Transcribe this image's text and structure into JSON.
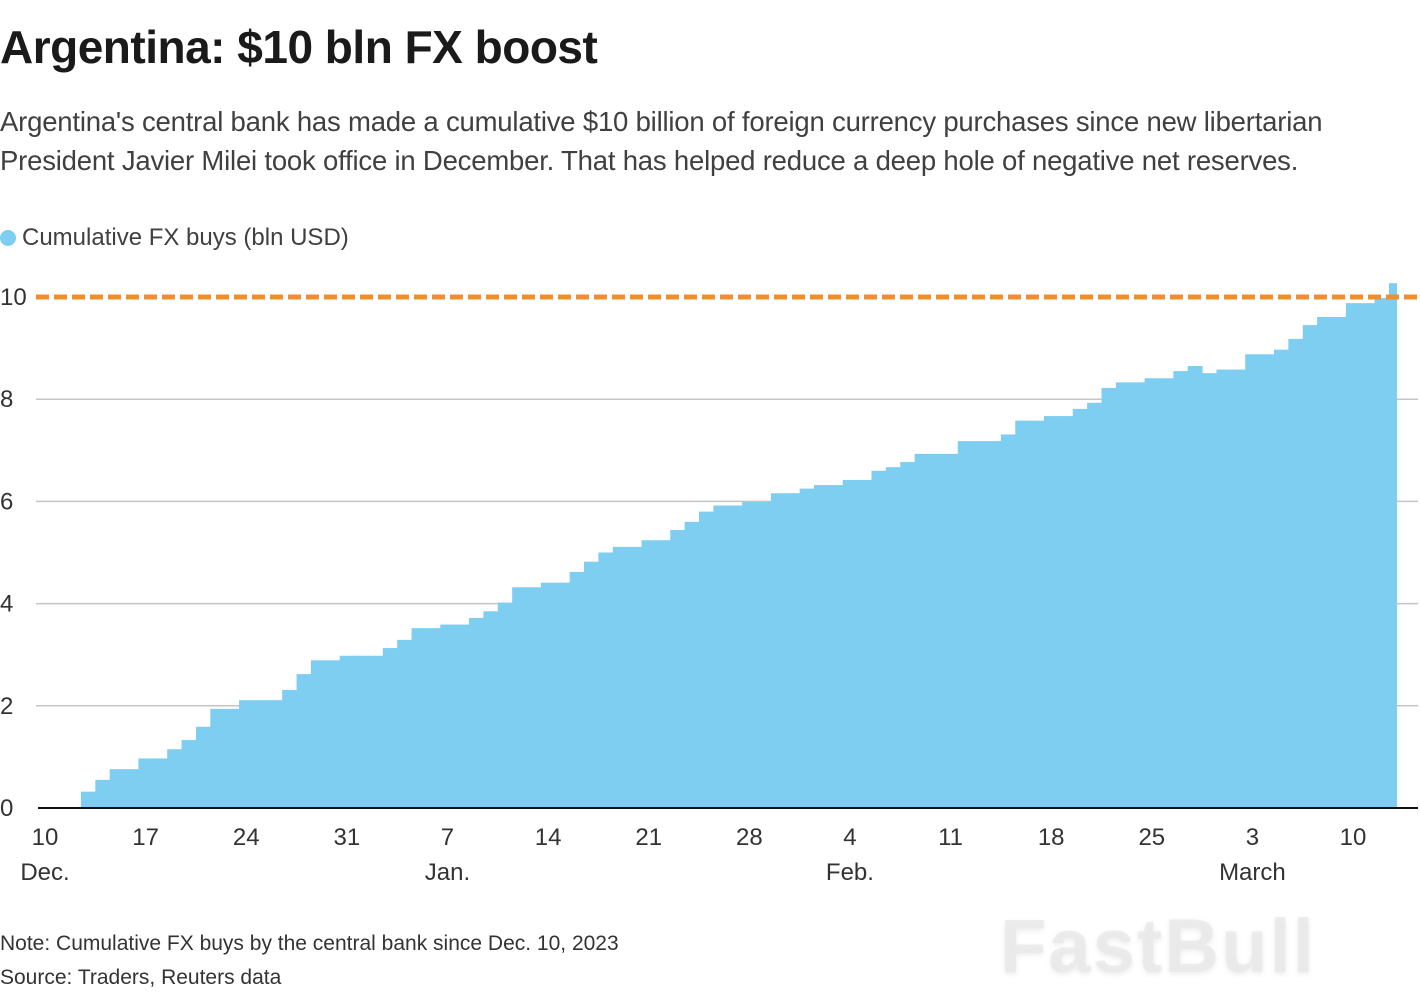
{
  "title": "Argentina: $10 bln FX boost",
  "subtitle": "Argentina's central bank has made a cumulative $10 billion of foreign currency purchases since new libertarian President Javier Milei took office in December. That has helped reduce a deep hole of negative net reserves.",
  "note": "Note: Cumulative FX buys by the central bank since Dec. 10, 2023",
  "source": "Source: Traders, Reuters data",
  "watermark": "FastBull",
  "chart_data": {
    "type": "area",
    "step": true,
    "title": "Argentina: $10 bln FX boost",
    "xlabel": "",
    "ylabel": "",
    "ylim": [
      0,
      10.4
    ],
    "grid": true,
    "legend_position": "top-left",
    "yticks": [
      "0",
      "2",
      "4",
      "6",
      "8",
      "10"
    ],
    "xticks": [
      {
        "date": "2023-12-10",
        "label": "10",
        "month": "Dec."
      },
      {
        "date": "2023-12-17",
        "label": "17",
        "month": ""
      },
      {
        "date": "2023-12-24",
        "label": "24",
        "month": ""
      },
      {
        "date": "2023-12-31",
        "label": "31",
        "month": ""
      },
      {
        "date": "2024-01-07",
        "label": "7",
        "month": "Jan."
      },
      {
        "date": "2024-01-14",
        "label": "14",
        "month": ""
      },
      {
        "date": "2024-01-21",
        "label": "21",
        "month": ""
      },
      {
        "date": "2024-01-28",
        "label": "28",
        "month": ""
      },
      {
        "date": "2024-02-04",
        "label": "4",
        "month": "Feb."
      },
      {
        "date": "2024-02-11",
        "label": "11",
        "month": ""
      },
      {
        "date": "2024-02-18",
        "label": "18",
        "month": ""
      },
      {
        "date": "2024-02-25",
        "label": "25",
        "month": ""
      },
      {
        "date": "2024-03-03",
        "label": "3",
        "month": "March"
      },
      {
        "date": "2024-03-10",
        "label": "10",
        "month": ""
      }
    ],
    "reference_line": {
      "value": 10,
      "color": "#EE8F2B",
      "style": "dashed"
    },
    "series": [
      {
        "name": "Cumulative FX buys (bln USD)",
        "color": "#7ECEF2",
        "dates": [
          "2023-12-10",
          "2023-12-11",
          "2023-12-12",
          "2023-12-13",
          "2023-12-14",
          "2023-12-15",
          "2023-12-16",
          "2023-12-17",
          "2023-12-18",
          "2023-12-19",
          "2023-12-20",
          "2023-12-21",
          "2023-12-22",
          "2023-12-23",
          "2023-12-24",
          "2023-12-25",
          "2023-12-26",
          "2023-12-27",
          "2023-12-28",
          "2023-12-29",
          "2023-12-30",
          "2023-12-31",
          "2024-01-01",
          "2024-01-02",
          "2024-01-03",
          "2024-01-04",
          "2024-01-05",
          "2024-01-06",
          "2024-01-07",
          "2024-01-08",
          "2024-01-09",
          "2024-01-10",
          "2024-01-11",
          "2024-01-12",
          "2024-01-13",
          "2024-01-14",
          "2024-01-15",
          "2024-01-16",
          "2024-01-17",
          "2024-01-18",
          "2024-01-19",
          "2024-01-20",
          "2024-01-21",
          "2024-01-22",
          "2024-01-23",
          "2024-01-24",
          "2024-01-25",
          "2024-01-26",
          "2024-01-27",
          "2024-01-28",
          "2024-01-29",
          "2024-01-30",
          "2024-01-31",
          "2024-02-01",
          "2024-02-02",
          "2024-02-03",
          "2024-02-04",
          "2024-02-05",
          "2024-02-06",
          "2024-02-07",
          "2024-02-08",
          "2024-02-09",
          "2024-02-10",
          "2024-02-11",
          "2024-02-12",
          "2024-02-13",
          "2024-02-14",
          "2024-02-15",
          "2024-02-16",
          "2024-02-17",
          "2024-02-18",
          "2024-02-19",
          "2024-02-20",
          "2024-02-21",
          "2024-02-22",
          "2024-02-23",
          "2024-02-24",
          "2024-02-25",
          "2024-02-26",
          "2024-02-27",
          "2024-02-28",
          "2024-02-29",
          "2024-03-01",
          "2024-03-02",
          "2024-03-03",
          "2024-03-04",
          "2024-03-05",
          "2024-03-06",
          "2024-03-07",
          "2024-03-08",
          "2024-03-09",
          "2024-03-10",
          "2024-03-11",
          "2024-03-12",
          "2024-03-13"
        ],
        "values": [
          0.02,
          0.02,
          0.02,
          0.32,
          0.55,
          0.76,
          0.76,
          0.97,
          0.97,
          1.15,
          1.33,
          1.59,
          1.94,
          1.94,
          2.11,
          2.11,
          2.11,
          2.31,
          2.62,
          2.89,
          2.89,
          2.98,
          2.98,
          2.98,
          3.13,
          3.29,
          3.52,
          3.52,
          3.59,
          3.59,
          3.72,
          3.85,
          4.02,
          4.32,
          4.32,
          4.41,
          4.41,
          4.62,
          4.82,
          5.0,
          5.11,
          5.11,
          5.24,
          5.24,
          5.44,
          5.6,
          5.8,
          5.92,
          5.92,
          5.99,
          5.99,
          6.16,
          6.16,
          6.25,
          6.32,
          6.32,
          6.42,
          6.42,
          6.6,
          6.67,
          6.77,
          6.93,
          6.93,
          6.93,
          7.18,
          7.18,
          7.18,
          7.31,
          7.58,
          7.58,
          7.67,
          7.67,
          7.81,
          7.93,
          8.22,
          8.33,
          8.33,
          8.41,
          8.41,
          8.55,
          8.65,
          8.51,
          8.58,
          8.58,
          8.88,
          8.88,
          8.97,
          9.18,
          9.45,
          9.61,
          9.61,
          9.88,
          9.88,
          9.98,
          10.27
        ]
      }
    ]
  }
}
